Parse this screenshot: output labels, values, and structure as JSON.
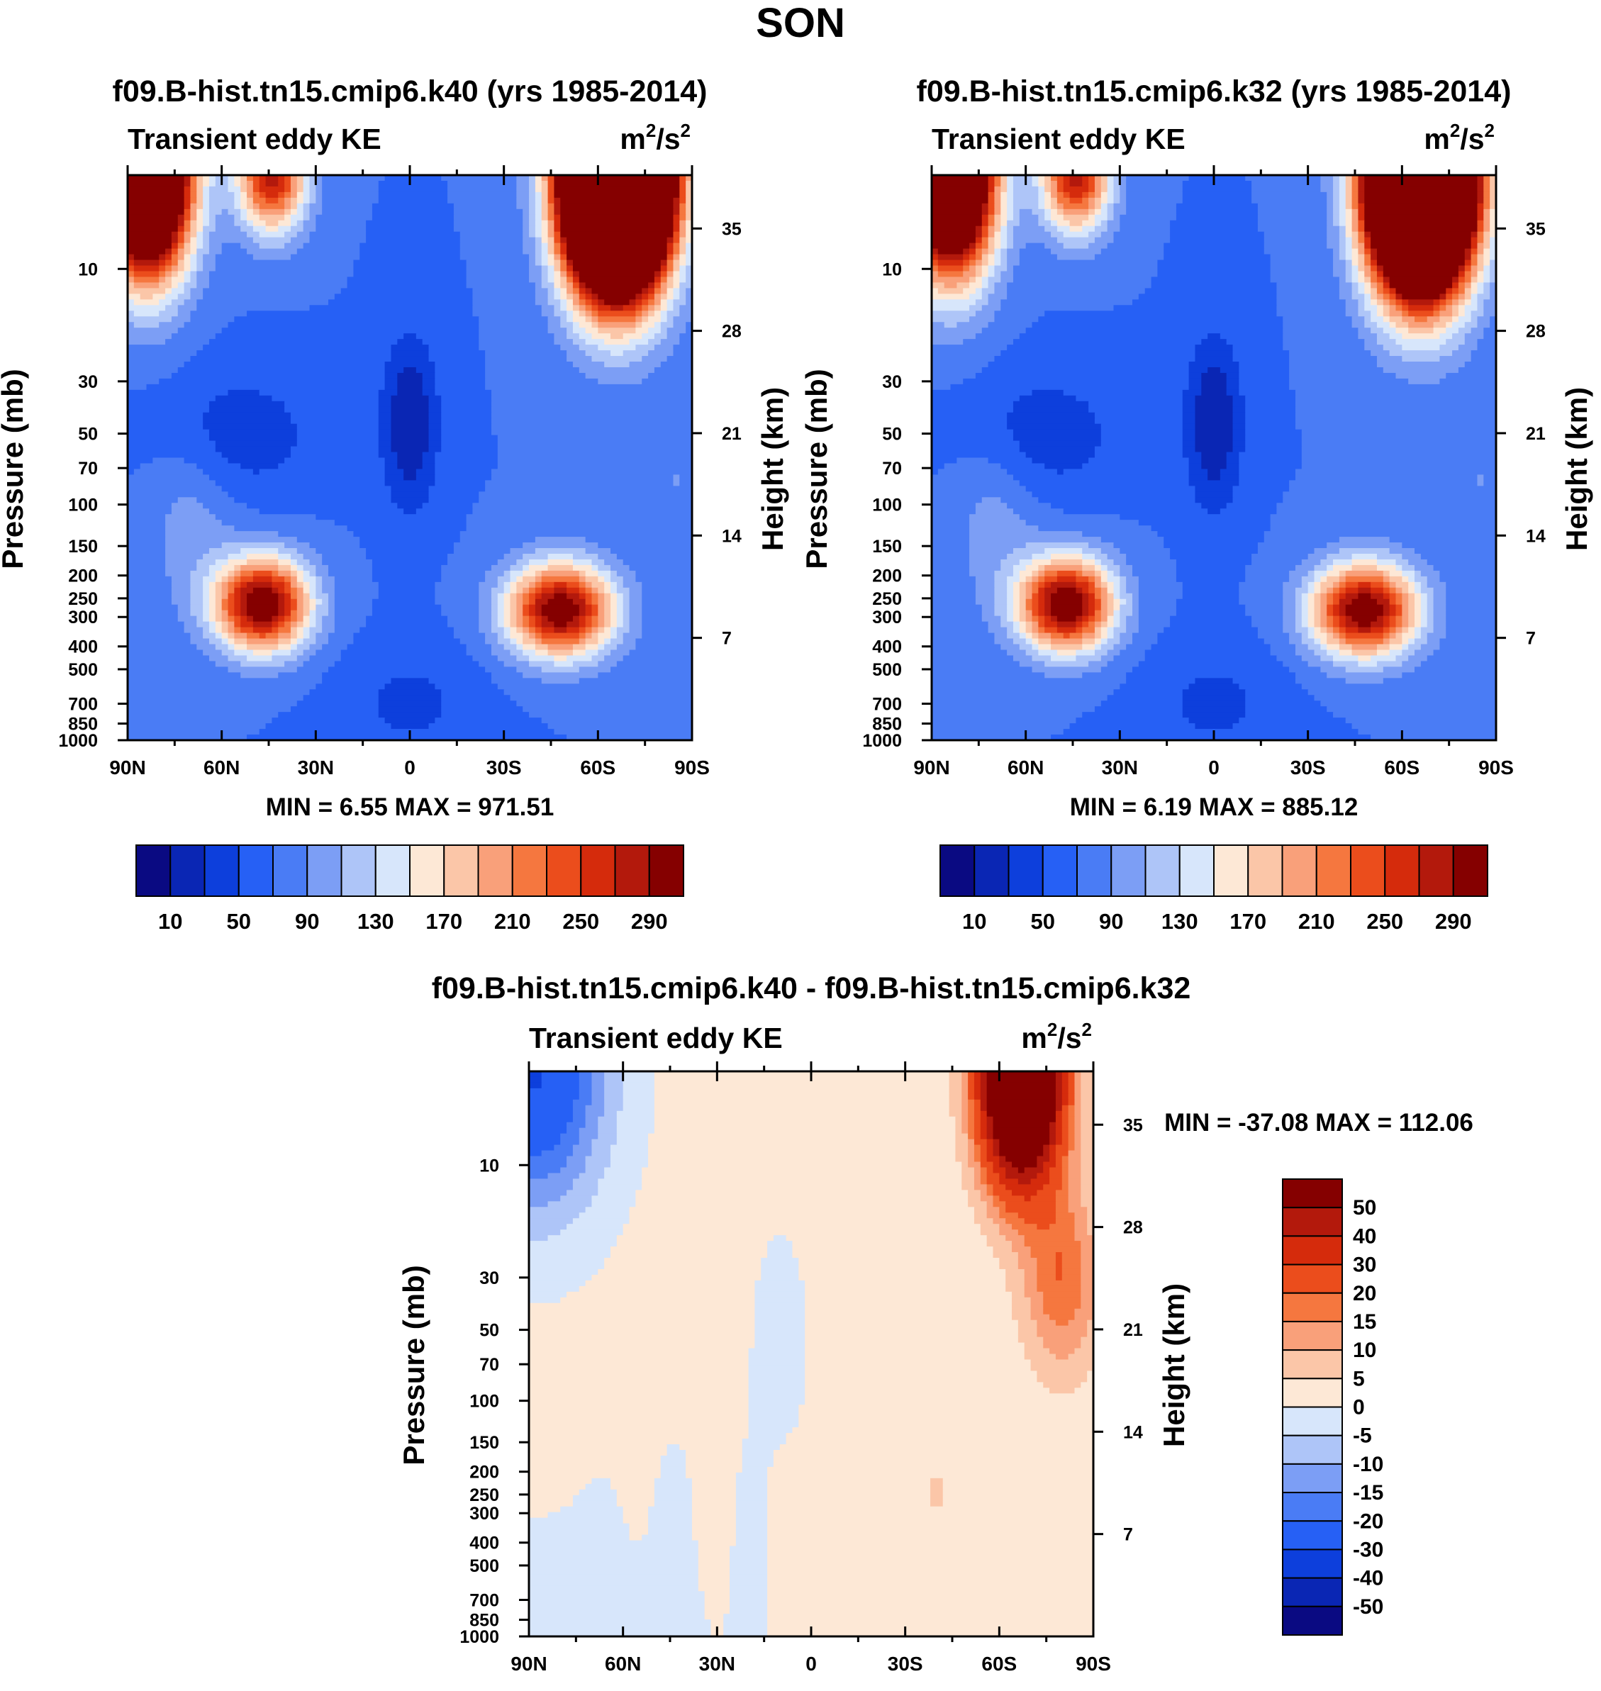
{
  "figure_title": "SON",
  "colormaps": {
    "ke": [
      "#0a0a82",
      "#0a26b4",
      "#0d3fdc",
      "#2660f5",
      "#4a7cf5",
      "#7c9ef5",
      "#aec5f8",
      "#d7e6fb",
      "#fde8d6",
      "#fbc6a8",
      "#f9a07a",
      "#f5773f",
      "#eb4d1c",
      "#d52b0c",
      "#b3190c",
      "#850000"
    ],
    "diff": [
      "#0a0a82",
      "#0a26b4",
      "#0d3fdc",
      "#2660f5",
      "#4a7cf5",
      "#7c9ef5",
      "#aec5f8",
      "#d7e6fb",
      "#fde8d6",
      "#fbc6a8",
      "#f9a07a",
      "#f5773f",
      "#eb4d1c",
      "#d52b0c",
      "#b3190c",
      "#850000"
    ]
  },
  "chart_data": [
    {
      "id": "left",
      "type": "contour",
      "title": "f09.B-hist.tn15.cmip6.k40 (yrs 1985-2014)",
      "left_label": "Transient eddy KE",
      "right_label_base": "m",
      "right_label_mid": "/s",
      "right_label_exp": "2",
      "xlabel": "",
      "ylabel": "Pressure (mb)",
      "y2label": "Height (km)",
      "x_ticks": [
        "90N",
        "60N",
        "30N",
        "0",
        "30S",
        "60S",
        "90S"
      ],
      "x_tick_values": [
        90,
        60,
        30,
        0,
        -30,
        -60,
        -90
      ],
      "xlim": [
        90,
        -90
      ],
      "y_ticks": [
        "10",
        "30",
        "50",
        "70",
        "100",
        "150",
        "200",
        "250",
        "300",
        "400",
        "500",
        "700",
        "850",
        "1000"
      ],
      "y_tick_values": [
        10,
        30,
        50,
        70,
        100,
        150,
        200,
        250,
        300,
        400,
        500,
        700,
        850,
        1000
      ],
      "ylim": [
        4,
        1000
      ],
      "y2_ticks": [
        "35",
        "28",
        "21",
        "14",
        "7"
      ],
      "y2_tick_values": [
        35,
        28,
        21,
        14,
        7
      ],
      "stats": "MIN =   6.55  MAX = 971.51",
      "min": 6.55,
      "max": 971.51,
      "colorbar_labels": [
        "10",
        "50",
        "90",
        "130",
        "170",
        "210",
        "250",
        "290"
      ],
      "contour_levels": [
        10,
        30,
        50,
        70,
        90,
        110,
        130,
        150,
        170,
        190,
        210,
        230,
        250,
        270,
        290
      ],
      "features": [
        {
          "kind": "jet",
          "lat": 48,
          "p": 260,
          "peak": 320
        },
        {
          "kind": "jet",
          "lat": -48,
          "p": 280,
          "peak": 310
        },
        {
          "kind": "polar_night_jet",
          "lat": -65,
          "p": 5,
          "peak": 900
        },
        {
          "kind": "strat_high",
          "lat": 80,
          "p": 5,
          "peak": 620
        },
        {
          "kind": "strat_high",
          "lat": 45,
          "p": 4,
          "peak": 250
        },
        {
          "kind": "equatorial_min",
          "lat": 0,
          "p": 50,
          "peak": 8
        }
      ]
    },
    {
      "id": "right",
      "type": "contour",
      "title": "f09.B-hist.tn15.cmip6.k32 (yrs 1985-2014)",
      "left_label": "Transient eddy KE",
      "right_label_base": "m",
      "right_label_mid": "/s",
      "right_label_exp": "2",
      "xlabel": "",
      "ylabel": "Pressure (mb)",
      "y2label": "Height (km)",
      "x_ticks": [
        "90N",
        "60N",
        "30N",
        "0",
        "30S",
        "60S",
        "90S"
      ],
      "x_tick_values": [
        90,
        60,
        30,
        0,
        -30,
        -60,
        -90
      ],
      "xlim": [
        90,
        -90
      ],
      "y_ticks": [
        "10",
        "30",
        "50",
        "70",
        "100",
        "150",
        "200",
        "250",
        "300",
        "400",
        "500",
        "700",
        "850",
        "1000"
      ],
      "y_tick_values": [
        10,
        30,
        50,
        70,
        100,
        150,
        200,
        250,
        300,
        400,
        500,
        700,
        850,
        1000
      ],
      "ylim": [
        4,
        1000
      ],
      "y2_ticks": [
        "35",
        "28",
        "21",
        "14",
        "7"
      ],
      "y2_tick_values": [
        35,
        28,
        21,
        14,
        7
      ],
      "stats": "MIN =   6.19  MAX = 885.12",
      "min": 6.19,
      "max": 885.12,
      "colorbar_labels": [
        "10",
        "50",
        "90",
        "130",
        "170",
        "210",
        "250",
        "290"
      ],
      "contour_levels": [
        10,
        30,
        50,
        70,
        90,
        110,
        130,
        150,
        170,
        190,
        210,
        230,
        250,
        270,
        290
      ],
      "features": [
        {
          "kind": "jet",
          "lat": 48,
          "p": 260,
          "peak": 315
        },
        {
          "kind": "jet",
          "lat": -48,
          "p": 280,
          "peak": 300
        },
        {
          "kind": "polar_night_jet",
          "lat": -65,
          "p": 5,
          "peak": 800
        },
        {
          "kind": "strat_high",
          "lat": 80,
          "p": 5,
          "peak": 600
        },
        {
          "kind": "strat_high",
          "lat": 45,
          "p": 4,
          "peak": 245
        },
        {
          "kind": "equatorial_min",
          "lat": 0,
          "p": 50,
          "peak": 8
        }
      ]
    },
    {
      "id": "diff",
      "type": "contour",
      "title": "f09.B-hist.tn15.cmip6.k40 - f09.B-hist.tn15.cmip6.k32",
      "left_label": "Transient eddy KE",
      "right_label_base": "m",
      "right_label_mid": "/s",
      "right_label_exp": "2",
      "xlabel": "",
      "ylabel": "Pressure (mb)",
      "y2label": "Height (km)",
      "x_ticks": [
        "90N",
        "60N",
        "30N",
        "0",
        "30S",
        "60S",
        "90S"
      ],
      "x_tick_values": [
        90,
        60,
        30,
        0,
        -30,
        -60,
        -90
      ],
      "xlim": [
        90,
        -90
      ],
      "y_ticks": [
        "10",
        "30",
        "50",
        "70",
        "100",
        "150",
        "200",
        "250",
        "300",
        "400",
        "500",
        "700",
        "850",
        "1000"
      ],
      "y_tick_values": [
        10,
        30,
        50,
        70,
        100,
        150,
        200,
        250,
        300,
        400,
        500,
        700,
        850,
        1000
      ],
      "ylim": [
        4,
        1000
      ],
      "y2_ticks": [
        "35",
        "28",
        "21",
        "14",
        "7"
      ],
      "y2_tick_values": [
        35,
        28,
        21,
        14,
        7
      ],
      "stats": "MIN = -37.08  MAX = 112.06",
      "min": -37.08,
      "max": 112.06,
      "colorbar_labels": [
        "50",
        "40",
        "30",
        "20",
        "15",
        "10",
        "5",
        "0",
        "-5",
        "-10",
        "-15",
        "-20",
        "-30",
        "-40",
        "-50"
      ],
      "contour_levels": [
        -50,
        -40,
        -30,
        -20,
        -15,
        -10,
        -5,
        0,
        5,
        10,
        15,
        20,
        30,
        40,
        50
      ],
      "features": [
        {
          "kind": "positive_max",
          "lat": -65,
          "p": 5,
          "peak": 112
        },
        {
          "kind": "negative_region",
          "lat": 85,
          "p": 6,
          "peak": -30
        },
        {
          "kind": "weak_positive",
          "lat": -20,
          "p": 300,
          "peak": 4
        }
      ]
    }
  ]
}
